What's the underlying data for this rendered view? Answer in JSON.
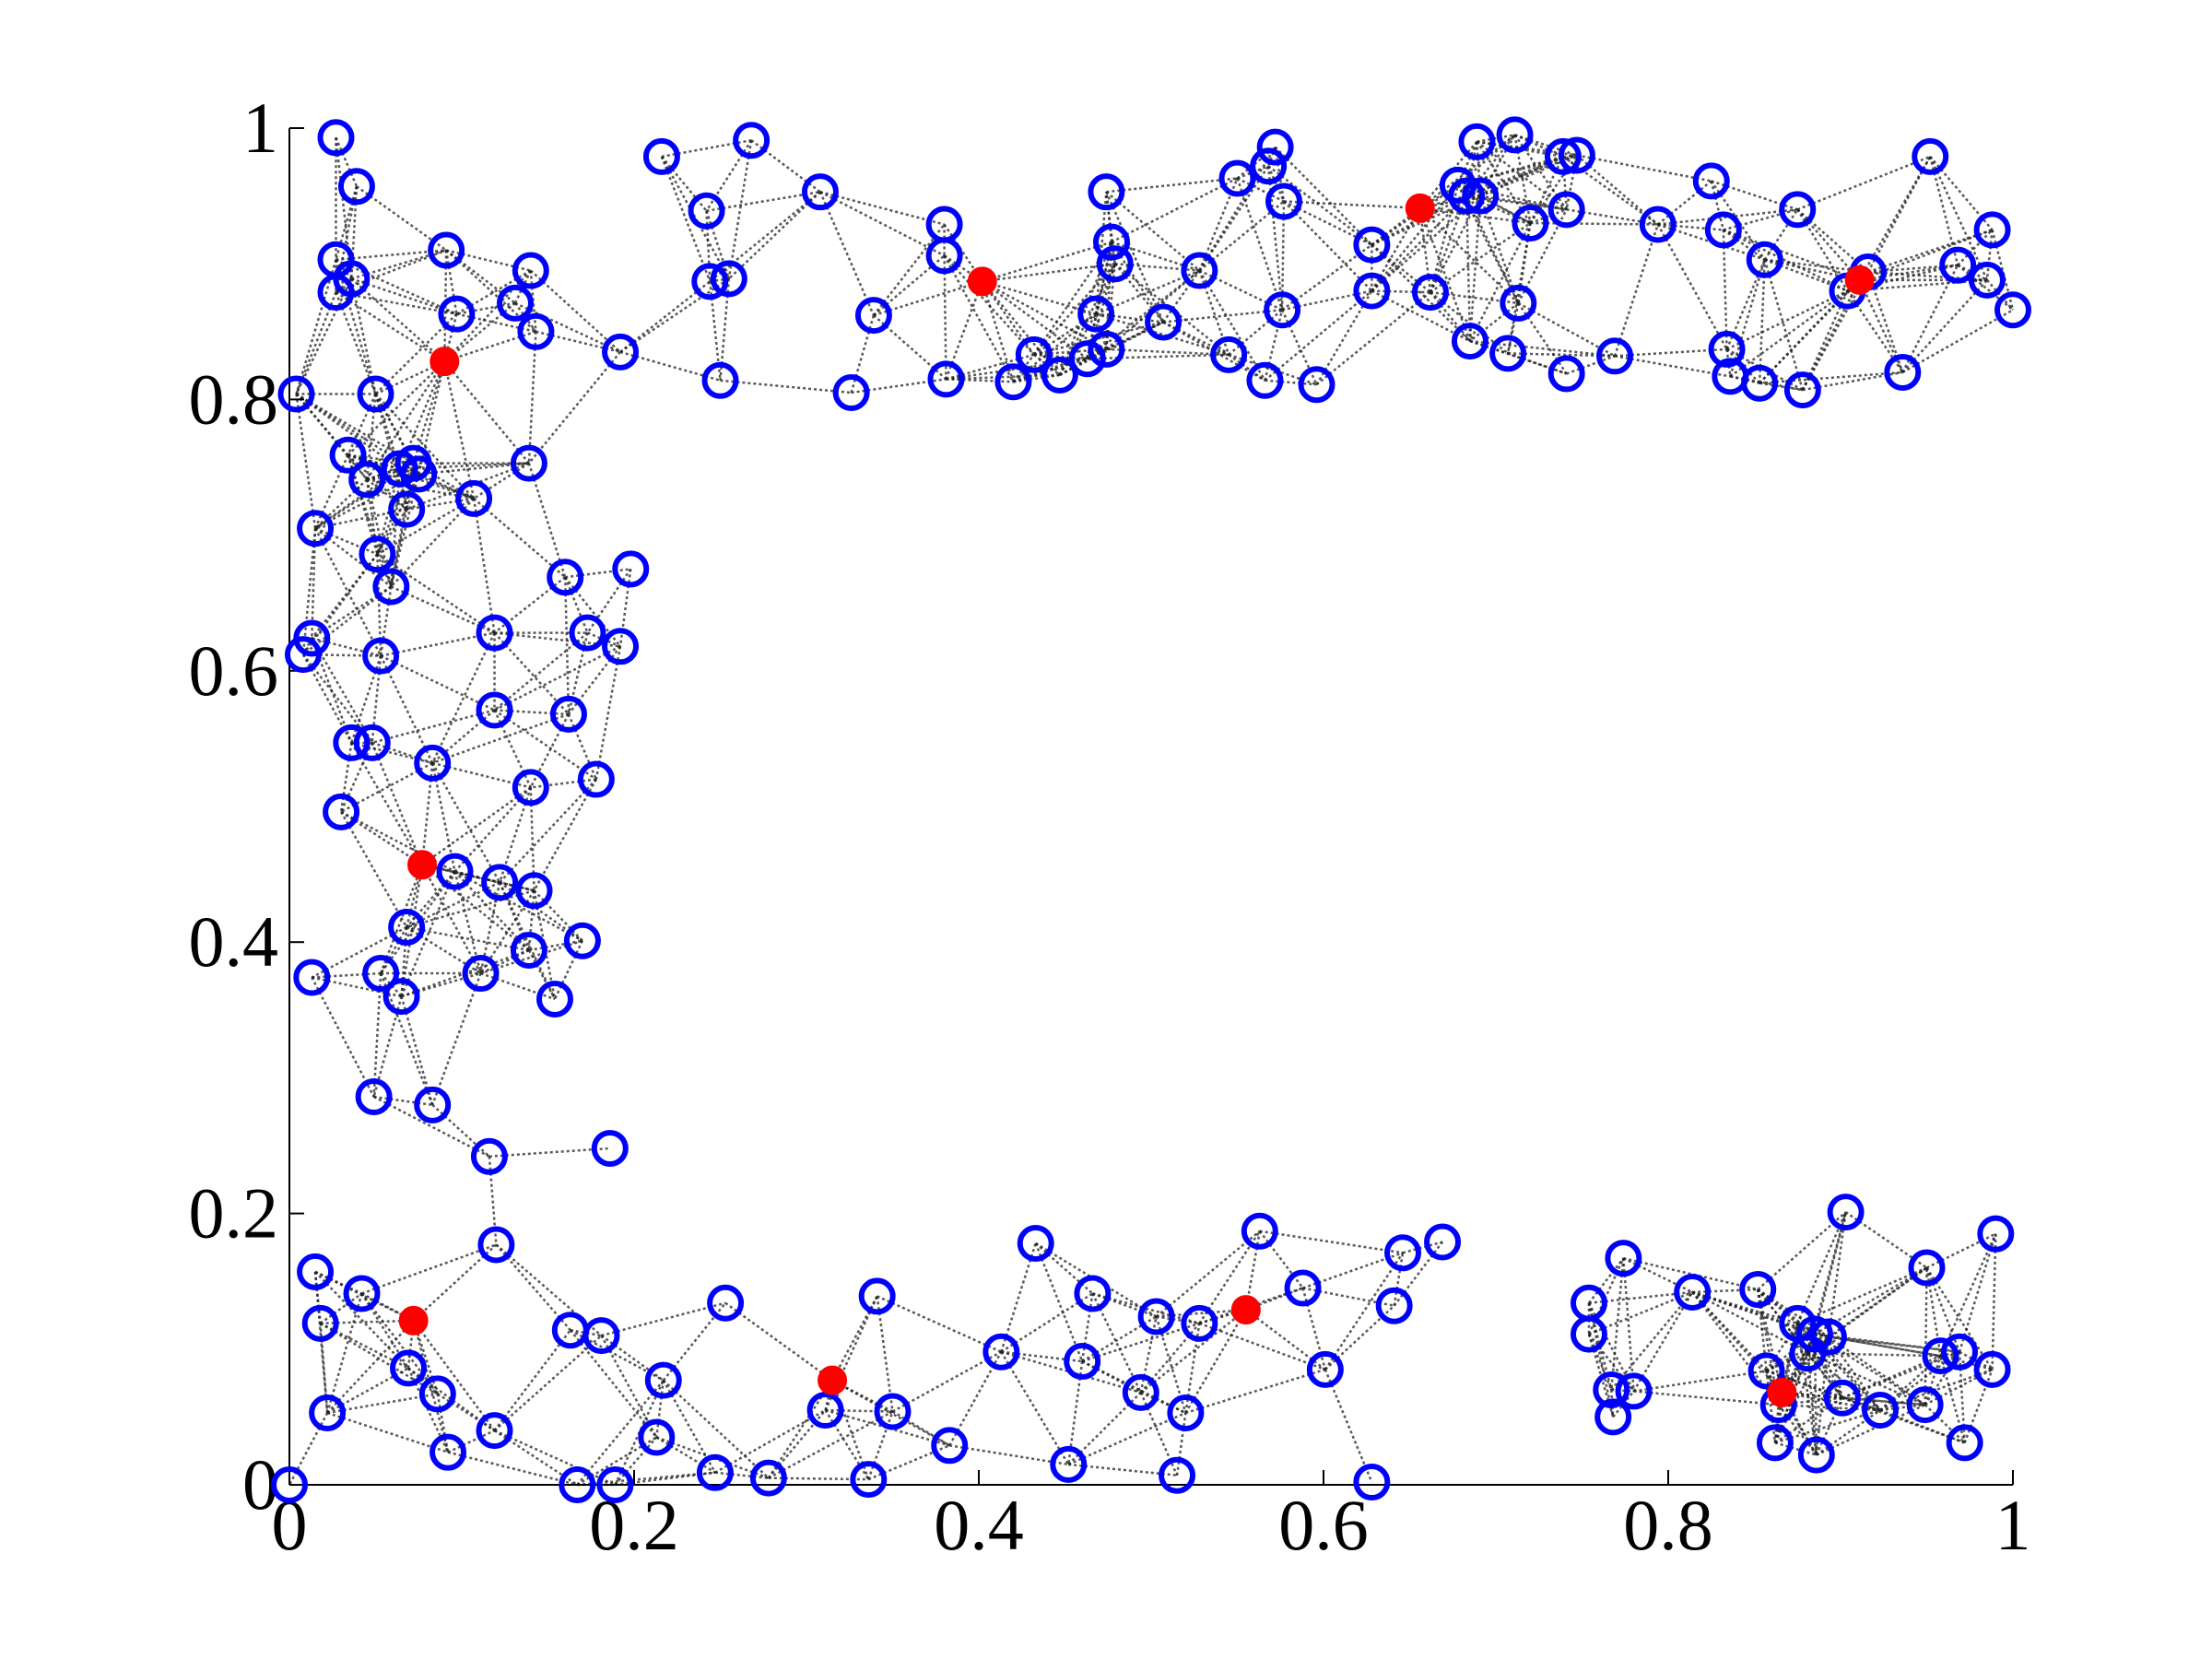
{
  "chart_data": {
    "type": "scatter",
    "xlim": [
      0,
      1
    ],
    "ylim": [
      0,
      1
    ],
    "xticks": [
      0,
      0.2,
      0.4,
      0.6,
      0.8,
      1
    ],
    "yticks": [
      0,
      0.2,
      0.4,
      0.6,
      0.8,
      1
    ],
    "series": [
      {
        "color": "#0000ff",
        "filled": false,
        "x": [
          0.027,
          0.039,
          0.027,
          0.036,
          0.027,
          0.091,
          0.14,
          0.131,
          0.097,
          0.143,
          0.192,
          0.004,
          0.05,
          0.034,
          0.045,
          0.064,
          0.072,
          0.075,
          0.139,
          0.107,
          0.068,
          0.015,
          0.051,
          0.059,
          0.16,
          0.198,
          0.013,
          0.008,
          0.053,
          0.119,
          0.173,
          0.192,
          0.119,
          0.162,
          0.036,
          0.048,
          0.083,
          0.178,
          0.14,
          0.03,
          0.096,
          0.122,
          0.142,
          0.068,
          0.139,
          0.17,
          0.013,
          0.053,
          0.065,
          0.111,
          0.154,
          0.049,
          0.083,
          0.116,
          0.186,
          0.216,
          0.268,
          0.242,
          0.308,
          0.244,
          0.255,
          0.25,
          0.326,
          0.339,
          0.38,
          0.38,
          0.381,
          0.42,
          0.432,
          0.447,
          0.463,
          0.474,
          0.468,
          0.477,
          0.479,
          0.474,
          0.507,
          0.528,
          0.545,
          0.55,
          0.572,
          0.568,
          0.577,
          0.566,
          0.576,
          0.596,
          0.628,
          0.628,
          0.662,
          0.678,
          0.689,
          0.683,
          0.691,
          0.711,
          0.72,
          0.713,
          0.685,
          0.707,
          0.739,
          0.747,
          0.741,
          0.741,
          0.769,
          0.794,
          0.825,
          0.832,
          0.834,
          0.836,
          0.853,
          0.878,
          0.856,
          0.875,
          0.904,
          0.916,
          0.936,
          0.952,
          0.968,
          0.988,
          0.985,
          1.0,
          0.015,
          0.018,
          0.042,
          0.022,
          0,
          0.069,
          0.086,
          0.092,
          0.119,
          0.12,
          0.163,
          0.181,
          0.167,
          0.189,
          0.217,
          0.213,
          0.247,
          0.253,
          0.278,
          0.311,
          0.341,
          0.336,
          0.35,
          0.383,
          0.413,
          0.433,
          0.46,
          0.466,
          0.452,
          0.494,
          0.503,
          0.515,
          0.52,
          0.528,
          0.563,
          0.588,
          0.601,
          0.628,
          0.641,
          0.646,
          0.669,
          0.754,
          0.754,
          0.774,
          0.767,
          0.768,
          0.78,
          0.814,
          0.852,
          0.857,
          0.862,
          0.864,
          0.875,
          0.885,
          0.881,
          0.893,
          0.886,
          0.901,
          0.903,
          0.923,
          0.949,
          0.95,
          0.958,
          0.969,
          0.972,
          0.988,
          0.99
        ],
        "y": [
          0.993,
          0.957,
          0.903,
          0.889,
          0.879,
          0.91,
          0.895,
          0.871,
          0.863,
          0.85,
          0.835,
          0.804,
          0.804,
          0.759,
          0.741,
          0.749,
          0.753,
          0.745,
          0.753,
          0.727,
          0.719,
          0.705,
          0.686,
          0.662,
          0.669,
          0.675,
          0.624,
          0.612,
          0.611,
          0.628,
          0.628,
          0.618,
          0.571,
          0.568,
          0.547,
          0.547,
          0.532,
          0.52,
          0.514,
          0.496,
          0.452,
          0.444,
          0.438,
          0.411,
          0.394,
          0.401,
          0.374,
          0.377,
          0.36,
          0.377,
          0.358,
          0.286,
          0.28,
          0.242,
          0.248,
          0.979,
          0.991,
          0.939,
          0.953,
          0.887,
          0.889,
          0.814,
          0.805,
          0.862,
          0.929,
          0.906,
          0.815,
          0.813,
          0.833,
          0.818,
          0.83,
          0.837,
          0.863,
          0.916,
          0.9,
          0.953,
          0.857,
          0.895,
          0.833,
          0.963,
          0.986,
          0.972,
          0.946,
          0.814,
          0.866,
          0.811,
          0.914,
          0.88,
          0.879,
          0.958,
          0.99,
          0.95,
          0.95,
          0.995,
          0.93,
          0.871,
          0.843,
          0.834,
          0.979,
          0.98,
          0.94,
          0.819,
          0.832,
          0.929,
          0.961,
          0.925,
          0.837,
          0.817,
          0.812,
          0.807,
          0.903,
          0.94,
          0.88,
          0.894,
          0.82,
          0.979,
          0.899,
          0.925,
          0.888,
          0.866,
          0.157,
          0.119,
          0.141,
          0.053,
          0,
          0.086,
          0.067,
          0.024,
          0.04,
          0.177,
          0.114,
          0.11,
          0.0,
          0.0,
          0.077,
          0.035,
          0.009,
          0.134,
          0.005,
          0.055,
          0.139,
          0.004,
          0.054,
          0.029,
          0.098,
          0.178,
          0.091,
          0.141,
          0.015,
          0.068,
          0.124,
          0.007,
          0.053,
          0.119,
          0.187,
          0.145,
          0.085,
          0.002,
          0.132,
          0.171,
          0.179,
          0.134,
          0.111,
          0.167,
          0.07,
          0.05,
          0.069,
          0.142,
          0.144,
          0.084,
          0.031,
          0.059,
          0.119,
          0.111,
          0.097,
          0.109,
          0.022,
          0.064,
          0.201,
          0.055,
          0.059,
          0.16,
          0.095,
          0.098,
          0.031,
          0.085,
          0.185
        ]
      },
      {
        "color": "#ff0000",
        "filled": true,
        "x": [
          0.09,
          0.077,
          0.402,
          0.656,
          0.911,
          0.072,
          0.315,
          0.555,
          0.866
        ],
        "y": [
          0.828,
          0.457,
          0.887,
          0.941,
          0.888,
          0.121,
          0.077,
          0.129,
          0.068
        ]
      }
    ]
  }
}
